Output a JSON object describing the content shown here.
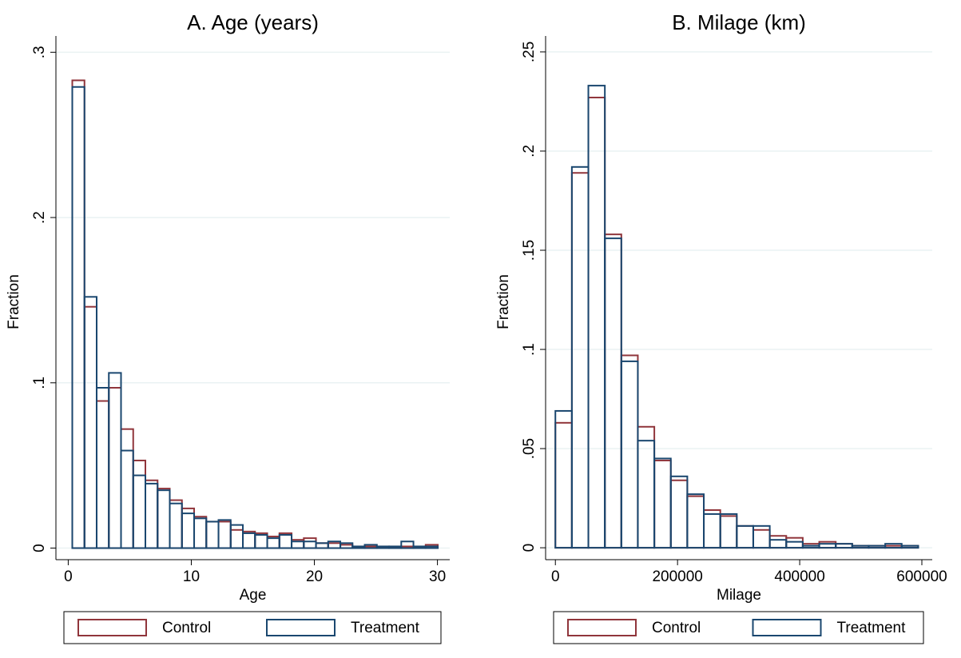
{
  "chart_data": [
    {
      "type": "histogram",
      "title": "A. Age (years)",
      "x_label": "Age",
      "y_label": "Fraction",
      "bins": [
        0.33,
        1.32,
        2.31,
        3.3,
        4.29,
        5.28,
        6.27,
        7.26,
        8.25,
        9.24,
        10.23,
        11.22,
        12.21,
        13.2,
        14.19,
        15.18,
        16.17,
        17.16,
        18.15,
        19.14,
        20.13,
        21.12,
        22.11,
        23.1,
        24.09,
        25.08,
        26.07,
        27.06,
        28.05,
        29.04,
        30.03
      ],
      "series": [
        {
          "name": "Control",
          "color": "#90353b",
          "values": [
            0.283,
            0.146,
            0.089,
            0.097,
            0.072,
            0.053,
            0.041,
            0.036,
            0.029,
            0.024,
            0.019,
            0.016,
            0.016,
            0.011,
            0.01,
            0.009,
            0.007,
            0.009,
            0.005,
            0.006,
            0.003,
            0.003,
            0.002,
            0.001,
            0.001,
            0.001,
            0.001,
            0.001,
            0.001,
            0.002
          ]
        },
        {
          "name": "Treatment",
          "color": "#1a476f",
          "values": [
            0.279,
            0.152,
            0.097,
            0.106,
            0.059,
            0.044,
            0.039,
            0.035,
            0.027,
            0.021,
            0.018,
            0.016,
            0.017,
            0.014,
            0.009,
            0.008,
            0.006,
            0.008,
            0.004,
            0.004,
            0.003,
            0.004,
            0.003,
            0.001,
            0.002,
            0.001,
            0.001,
            0.004,
            0.001,
            0.001
          ]
        }
      ],
      "xlim": [
        -1,
        31
      ],
      "xticks": [
        0,
        10,
        20,
        30
      ],
      "ylim": [
        -0.007,
        0.305
      ],
      "yticks": [
        {
          "value": 0,
          "label": "0"
        },
        {
          "value": 0.1,
          "label": ".1"
        },
        {
          "value": 0.2,
          "label": ".2"
        },
        {
          "value": 0.3,
          "label": ".3"
        }
      ],
      "grid": true,
      "legend": "bottom"
    },
    {
      "type": "histogram",
      "title": "B. Milage (km)",
      "x_label": "Milage",
      "y_label": "Fraction",
      "bins": [
        0,
        27000,
        54000,
        81000,
        108000,
        135000,
        162000,
        189000,
        216000,
        243000,
        270000,
        297000,
        324000,
        351000,
        378000,
        405000,
        432000,
        459000,
        486000,
        513000,
        540000,
        567000,
        594000
      ],
      "series": [
        {
          "name": "Control",
          "color": "#90353b",
          "values": [
            0.063,
            0.189,
            0.227,
            0.158,
            0.097,
            0.061,
            0.044,
            0.034,
            0.026,
            0.019,
            0.016,
            0.011,
            0.009,
            0.006,
            0.005,
            0.002,
            0.003,
            0.002,
            0.001,
            0.001,
            0.001,
            0.001
          ]
        },
        {
          "name": "Treatment",
          "color": "#1a476f",
          "values": [
            0.069,
            0.192,
            0.233,
            0.156,
            0.094,
            0.054,
            0.045,
            0.036,
            0.027,
            0.017,
            0.017,
            0.011,
            0.011,
            0.004,
            0.003,
            0.001,
            0.002,
            0.002,
            0.001,
            0.001,
            0.002,
            0.001
          ]
        }
      ],
      "xlim": [
        -16000,
        617000
      ],
      "xticks": [
        0,
        200000,
        400000,
        600000
      ],
      "ylim": [
        -0.006,
        0.254
      ],
      "yticks": [
        {
          "value": 0,
          "label": "0"
        },
        {
          "value": 0.05,
          "label": ".05"
        },
        {
          "value": 0.1,
          "label": ".1"
        },
        {
          "value": 0.15,
          "label": ".15"
        },
        {
          "value": 0.2,
          "label": ".2"
        },
        {
          "value": 0.25,
          "label": ".25"
        }
      ],
      "grid": true,
      "legend": "bottom"
    }
  ]
}
